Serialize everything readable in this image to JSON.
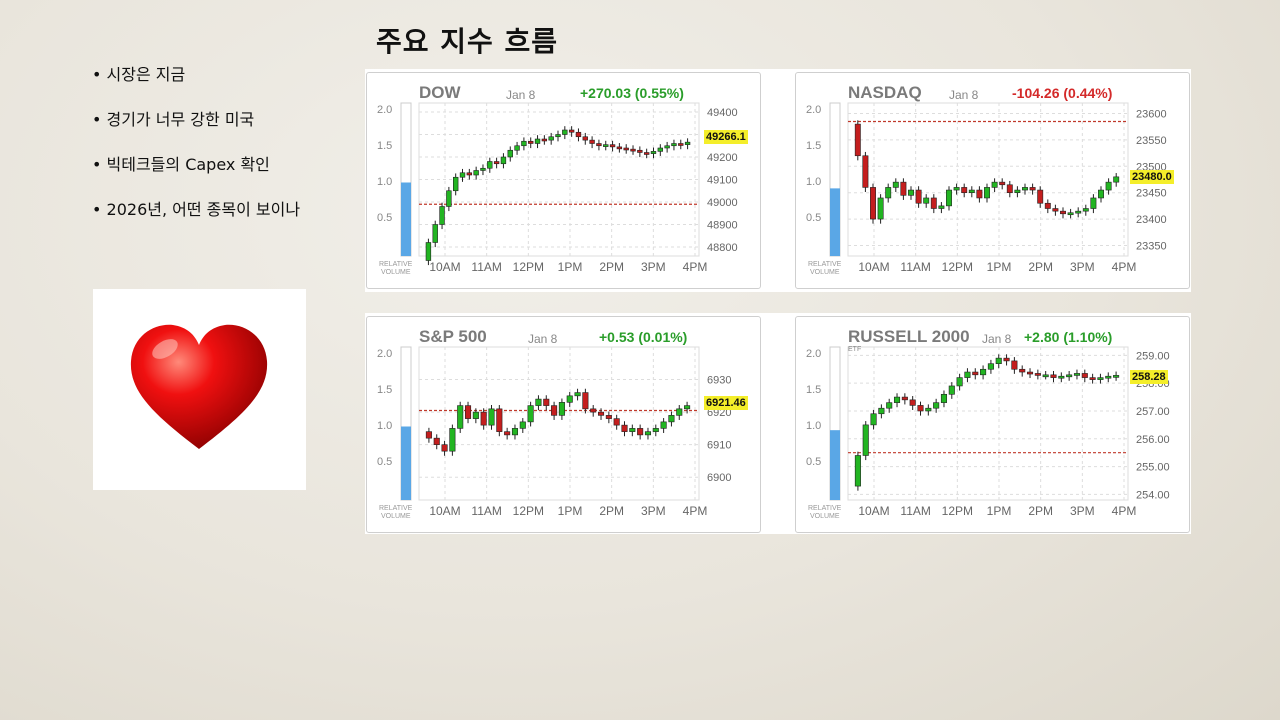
{
  "slide": {
    "title": "주요 지수 흐름",
    "bullets": [
      "• 시장은 지금",
      "• 경기가 너무 강한 미국",
      "• 빅테크들의 Capex 확인",
      "• 2026년, 어떤 종목이 보이나"
    ],
    "heart_icon": "red-heart"
  },
  "chart_data": [
    {
      "type": "candlestick",
      "title": "DOW",
      "date": "Jan 8",
      "change": "+270.03 (0.55%)",
      "change_color": "#2a9d2a",
      "last_price": "49266.1",
      "x_ticks": [
        "10AM",
        "11AM",
        "12PM",
        "1PM",
        "2PM",
        "3PM",
        "4PM"
      ],
      "y_ticks": [
        "49400",
        "49300",
        "49200",
        "49100",
        "49000",
        "48900",
        "48800"
      ],
      "ylim": [
        48760,
        49440
      ],
      "reference_line": 48990,
      "volume_ticks": [
        "2.0",
        "1.5",
        "1.0",
        "0.5"
      ],
      "relative_volume": 1.0,
      "closes": [
        48820,
        48900,
        48980,
        49050,
        49110,
        49130,
        49120,
        49140,
        49150,
        49180,
        49170,
        49200,
        49230,
        49250,
        49270,
        49260,
        49280,
        49275,
        49290,
        49300,
        49320,
        49310,
        49290,
        49275,
        49260,
        49250,
        49255,
        49245,
        49240,
        49235,
        49230,
        49220,
        49215,
        49225,
        49240,
        49250,
        49260,
        49255,
        49266
      ]
    },
    {
      "type": "candlestick",
      "title": "NASDAQ",
      "date": "Jan 8",
      "change": "-104.26 (0.44%)",
      "change_color": "#d42a2a",
      "last_price": "23480.0",
      "x_ticks": [
        "10AM",
        "11AM",
        "12PM",
        "1PM",
        "2PM",
        "3PM",
        "4PM"
      ],
      "y_ticks": [
        "23600",
        "23550",
        "23500",
        "23450",
        "23400",
        "23350"
      ],
      "ylim": [
        23330,
        23620
      ],
      "reference_line": 23585,
      "volume_ticks": [
        "2.0",
        "1.5",
        "1.0",
        "0.5"
      ],
      "relative_volume": 0.92,
      "closes": [
        23520,
        23460,
        23400,
        23440,
        23460,
        23470,
        23445,
        23455,
        23430,
        23440,
        23420,
        23425,
        23455,
        23460,
        23450,
        23455,
        23440,
        23460,
        23470,
        23465,
        23450,
        23455,
        23460,
        23455,
        23430,
        23420,
        23415,
        23410,
        23412,
        23415,
        23420,
        23440,
        23455,
        23470,
        23480
      ]
    },
    {
      "type": "candlestick",
      "title": "S&P 500",
      "date": "Jan 8",
      "change": "+0.53 (0.01%)",
      "change_color": "#2a9d2a",
      "last_price": "6921.46",
      "x_ticks": [
        "10AM",
        "11AM",
        "12PM",
        "1PM",
        "2PM",
        "3PM",
        "4PM"
      ],
      "y_ticks": [
        "6930",
        "6920",
        "6910",
        "6900"
      ],
      "ylim": [
        6893,
        6940
      ],
      "reference_line": 6920.5,
      "volume_ticks": [
        "2.0",
        "1.5",
        "1.0",
        "0.5"
      ],
      "relative_volume": 1.0,
      "closes": [
        6912,
        6910,
        6908,
        6915,
        6922,
        6918,
        6920,
        6916,
        6921,
        6914,
        6913,
        6915,
        6917,
        6922,
        6924,
        6922,
        6919,
        6923,
        6925,
        6926,
        6921,
        6920,
        6919,
        6918,
        6916,
        6914,
        6915,
        6913,
        6914,
        6915,
        6917,
        6919,
        6921,
        6922
      ]
    },
    {
      "type": "candlestick",
      "title": "RUSSELL 2000",
      "subtitle": "ETF",
      "date": "Jan 8",
      "change": "+2.80 (1.10%)",
      "change_color": "#2a9d2a",
      "last_price": "258.28",
      "x_ticks": [
        "10AM",
        "11AM",
        "12PM",
        "1PM",
        "2PM",
        "3PM",
        "4PM"
      ],
      "y_ticks": [
        "259.00",
        "258.00",
        "257.00",
        "256.00",
        "255.00",
        "254.00"
      ],
      "ylim": [
        253.8,
        259.3
      ],
      "reference_line": 255.5,
      "volume_ticks": [
        "2.0",
        "1.5",
        "1.0",
        "0.5"
      ],
      "relative_volume": 0.95,
      "closes": [
        255.4,
        256.5,
        256.9,
        257.1,
        257.3,
        257.5,
        257.4,
        257.2,
        257.0,
        257.1,
        257.3,
        257.6,
        257.9,
        258.2,
        258.4,
        258.3,
        258.5,
        258.7,
        258.9,
        258.8,
        258.5,
        258.4,
        258.35,
        258.3,
        258.3,
        258.2,
        258.25,
        258.3,
        258.35,
        258.2,
        258.15,
        258.2,
        258.25,
        258.28
      ]
    }
  ]
}
